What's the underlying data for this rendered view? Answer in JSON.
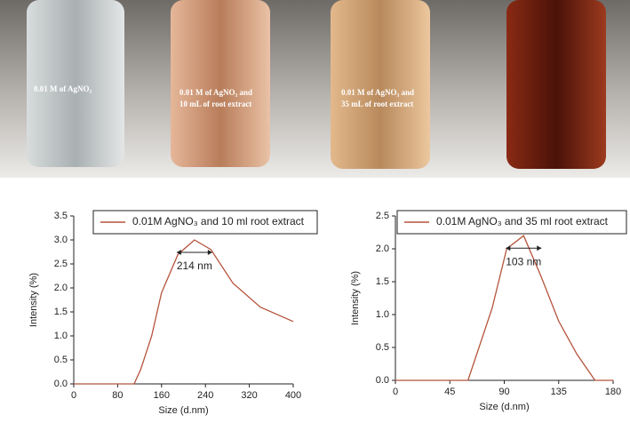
{
  "photo_labels": [
    "0.01 M of AgNO₃",
    "0.01 M of AgNO₃ and",
    "10 mL of root extract",
    "0.01 M of AgNO₃ and",
    "35 mL of root extract"
  ],
  "chart_data": [
    {
      "type": "line",
      "x": [
        0,
        110,
        122,
        142,
        160,
        190,
        220,
        250,
        290,
        340,
        400
      ],
      "series": [
        {
          "name": "0.01M AgNO₃ and 10 ml root extract",
          "color": "#b5533c",
          "values": [
            0,
            0,
            0.3,
            1.0,
            1.9,
            2.7,
            3.0,
            2.8,
            2.1,
            1.6,
            1.3
          ]
        }
      ],
      "xlim": [
        0,
        400
      ],
      "xticks": [
        0,
        80,
        160,
        240,
        320,
        400
      ],
      "ylim": [
        0,
        3.5
      ],
      "yticks": [
        {
          "value": 0,
          "label": "0.0"
        },
        {
          "value": 0.5,
          "label": "0.5"
        },
        {
          "value": 1,
          "label": "1.0"
        },
        {
          "value": 1.5,
          "label": "1.5"
        },
        {
          "value": 2,
          "label": "2.0"
        },
        {
          "value": 2.5,
          "label": "2.5"
        },
        {
          "value": 3,
          "label": "3.0"
        },
        {
          "value": 3.5,
          "label": "3.5"
        }
      ],
      "x_label": "Size (d.nm)",
      "y_label": "Intensity (%)",
      "annotation": "214 nm"
    },
    {
      "type": "line",
      "x": [
        0,
        60,
        80,
        92,
        106,
        120,
        135,
        150,
        165,
        180
      ],
      "series": [
        {
          "name": "0.01M AgNO₃ and 35 ml root extract",
          "color": "#b5533c",
          "values": [
            0,
            0,
            1.1,
            2.0,
            2.2,
            1.6,
            0.9,
            0.4,
            0,
            0
          ]
        }
      ],
      "xlim": [
        0,
        180
      ],
      "xticks": [
        0,
        45,
        90,
        135,
        180
      ],
      "ylim": [
        0,
        2.5
      ],
      "yticks": [
        {
          "value": 0,
          "label": "0.0"
        },
        {
          "value": 0.5,
          "label": "0.5"
        },
        {
          "value": 1,
          "label": "1.0"
        },
        {
          "value": 1.5,
          "label": "1.5"
        },
        {
          "value": 2,
          "label": "2.0"
        },
        {
          "value": 2.5,
          "label": "2.5"
        }
      ],
      "x_label": "Size (d.nm)",
      "y_label": "Intensity (%)",
      "annotation": "103 nm"
    }
  ]
}
